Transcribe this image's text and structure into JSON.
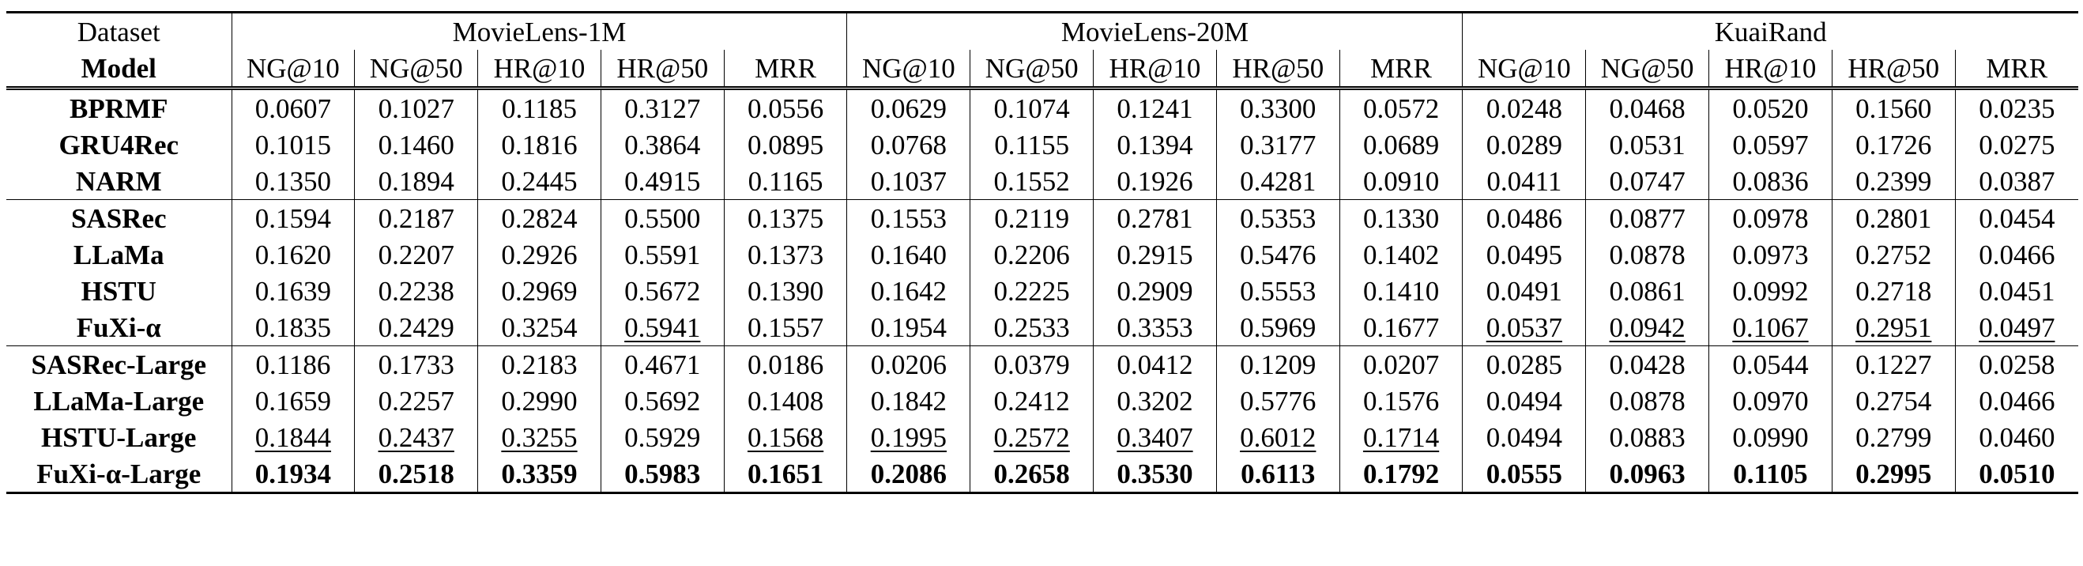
{
  "header": {
    "dataset_label": "Dataset",
    "model_label": "Model",
    "datasets": [
      "MovieLens-1M",
      "MovieLens-20M",
      "KuaiRand"
    ],
    "metrics": [
      "NG@10",
      "NG@50",
      "HR@10",
      "HR@50",
      "MRR"
    ]
  },
  "rows": [
    {
      "model": "BPRMF",
      "values": [
        "0.0607",
        "0.1027",
        "0.1185",
        "0.3127",
        "0.0556",
        "0.0629",
        "0.1074",
        "0.1241",
        "0.3300",
        "0.0572",
        "0.0248",
        "0.0468",
        "0.0520",
        "0.1560",
        "0.0235"
      ]
    },
    {
      "model": "GRU4Rec",
      "values": [
        "0.1015",
        "0.1460",
        "0.1816",
        "0.3864",
        "0.0895",
        "0.0768",
        "0.1155",
        "0.1394",
        "0.3177",
        "0.0689",
        "0.0289",
        "0.0531",
        "0.0597",
        "0.1726",
        "0.0275"
      ]
    },
    {
      "model": "NARM",
      "values": [
        "0.1350",
        "0.1894",
        "0.2445",
        "0.4915",
        "0.1165",
        "0.1037",
        "0.1552",
        "0.1926",
        "0.4281",
        "0.0910",
        "0.0411",
        "0.0747",
        "0.0836",
        "0.2399",
        "0.0387"
      ]
    },
    {
      "model": "SASRec",
      "values": [
        "0.1594",
        "0.2187",
        "0.2824",
        "0.5500",
        "0.1375",
        "0.1553",
        "0.2119",
        "0.2781",
        "0.5353",
        "0.1330",
        "0.0486",
        "0.0877",
        "0.0978",
        "0.2801",
        "0.0454"
      ]
    },
    {
      "model": "LLaMa",
      "values": [
        "0.1620",
        "0.2207",
        "0.2926",
        "0.5591",
        "0.1373",
        "0.1640",
        "0.2206",
        "0.2915",
        "0.5476",
        "0.1402",
        "0.0495",
        "0.0878",
        "0.0973",
        "0.2752",
        "0.0466"
      ]
    },
    {
      "model": "HSTU",
      "values": [
        "0.1639",
        "0.2238",
        "0.2969",
        "0.5672",
        "0.1390",
        "0.1642",
        "0.2225",
        "0.2909",
        "0.5553",
        "0.1410",
        "0.0491",
        "0.0861",
        "0.0992",
        "0.2718",
        "0.0451"
      ]
    },
    {
      "model": "FuXi-α",
      "values": [
        "0.1835",
        "0.2429",
        "0.3254",
        "0.5941",
        "0.1557",
        "0.1954",
        "0.2533",
        "0.3353",
        "0.5969",
        "0.1677",
        "0.0537",
        "0.0942",
        "0.1067",
        "0.2951",
        "0.0497"
      ]
    },
    {
      "model": "SASRec-Large",
      "values": [
        "0.1186",
        "0.1733",
        "0.2183",
        "0.4671",
        "0.0186",
        "0.0206",
        "0.0379",
        "0.0412",
        "0.1209",
        "0.0207",
        "0.0285",
        "0.0428",
        "0.0544",
        "0.1227",
        "0.0258"
      ]
    },
    {
      "model": "LLaMa-Large",
      "values": [
        "0.1659",
        "0.2257",
        "0.2990",
        "0.5692",
        "0.1408",
        "0.1842",
        "0.2412",
        "0.3202",
        "0.5776",
        "0.1576",
        "0.0494",
        "0.0878",
        "0.0970",
        "0.2754",
        "0.0466"
      ]
    },
    {
      "model": "HSTU-Large",
      "values": [
        "0.1844",
        "0.2437",
        "0.3255",
        "0.5929",
        "0.1568",
        "0.1995",
        "0.2572",
        "0.3407",
        "0.6012",
        "0.1714",
        "0.0494",
        "0.0883",
        "0.0990",
        "0.2799",
        "0.0460"
      ]
    },
    {
      "model": "FuXi-α-Large",
      "values": [
        "0.1934",
        "0.2518",
        "0.3359",
        "0.5983",
        "0.1651",
        "0.2086",
        "0.2658",
        "0.3530",
        "0.6113",
        "0.1792",
        "0.0555",
        "0.0963",
        "0.1105",
        "0.2995",
        "0.0510"
      ]
    }
  ]
}
